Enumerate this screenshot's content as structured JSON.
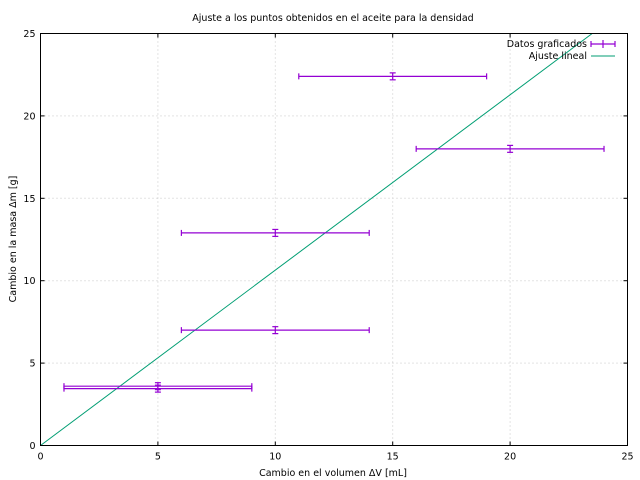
{
  "chart_data": {
    "type": "scatter",
    "title": "Ajuste a los puntos obtenidos en el aceite para la densidad",
    "xlabel": "Cambio en el volumen ΔV [mL]",
    "ylabel": "Cambio en la masa Δm [g]",
    "xlim": [
      0,
      25
    ],
    "ylim": [
      0,
      25
    ],
    "x_ticks": [
      0,
      5,
      10,
      15,
      20,
      25
    ],
    "y_ticks": [
      0,
      5,
      10,
      15,
      20,
      25
    ],
    "grid": true,
    "legend_position": "top-right",
    "series": [
      {
        "name": "Datos graficados",
        "kind": "errorbars",
        "color": "#9400d3",
        "points": [
          {
            "x": 5,
            "y": 3.6,
            "xerr": 4,
            "yerr": 0.15
          },
          {
            "x": 5,
            "y": 3.45,
            "xerr": 4,
            "yerr": 0.15
          },
          {
            "x": 10,
            "y": 7.0,
            "xerr": 4,
            "yerr": 0.15
          },
          {
            "x": 10,
            "y": 12.9,
            "xerr": 4,
            "yerr": 0.15
          },
          {
            "x": 15,
            "y": 22.4,
            "xerr": 4,
            "yerr": 0.15
          },
          {
            "x": 20,
            "y": 18.0,
            "xerr": 4,
            "yerr": 0.15
          }
        ]
      },
      {
        "name": "Ajuste lineal",
        "kind": "line",
        "color": "#009e73",
        "slope": 1.064,
        "intercept": 0
      }
    ]
  }
}
